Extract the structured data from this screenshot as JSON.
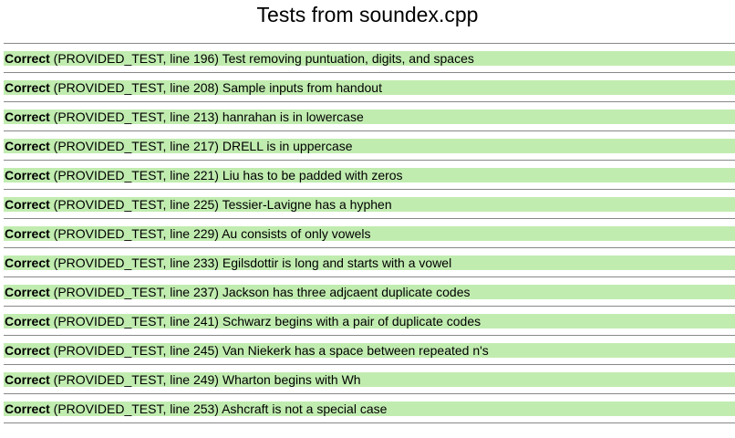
{
  "page": {
    "title": "Tests from soundex.cpp"
  },
  "colors": {
    "pass_bar": "#c1ecb0",
    "divider": "#888888"
  },
  "tests": [
    {
      "status": "Correct",
      "location": " (PROVIDED_TEST, line 196) ",
      "description": "Test removing puntuation, digits, and spaces"
    },
    {
      "status": "Correct",
      "location": " (PROVIDED_TEST, line 208) ",
      "description": "Sample inputs from handout"
    },
    {
      "status": "Correct",
      "location": " (PROVIDED_TEST, line 213) ",
      "description": "hanrahan is in lowercase"
    },
    {
      "status": "Correct",
      "location": " (PROVIDED_TEST, line 217) ",
      "description": "DRELL is in uppercase"
    },
    {
      "status": "Correct",
      "location": " (PROVIDED_TEST, line 221) ",
      "description": "Liu has to be padded with zeros"
    },
    {
      "status": "Correct",
      "location": " (PROVIDED_TEST, line 225) ",
      "description": "Tessier-Lavigne has a hyphen"
    },
    {
      "status": "Correct",
      "location": " (PROVIDED_TEST, line 229) ",
      "description": "Au consists of only vowels"
    },
    {
      "status": "Correct",
      "location": " (PROVIDED_TEST, line 233) ",
      "description": "Egilsdottir is long and starts with a vowel"
    },
    {
      "status": "Correct",
      "location": " (PROVIDED_TEST, line 237) ",
      "description": "Jackson has three adjcaent duplicate codes"
    },
    {
      "status": "Correct",
      "location": " (PROVIDED_TEST, line 241) ",
      "description": "Schwarz begins with a pair of duplicate codes"
    },
    {
      "status": "Correct",
      "location": " (PROVIDED_TEST, line 245) ",
      "description": "Van Niekerk has a space between repeated n's"
    },
    {
      "status": "Correct",
      "location": " (PROVIDED_TEST, line 249) ",
      "description": "Wharton begins with Wh"
    },
    {
      "status": "Correct",
      "location": " (PROVIDED_TEST, line 253) ",
      "description": "Ashcraft is not a special case"
    }
  ]
}
